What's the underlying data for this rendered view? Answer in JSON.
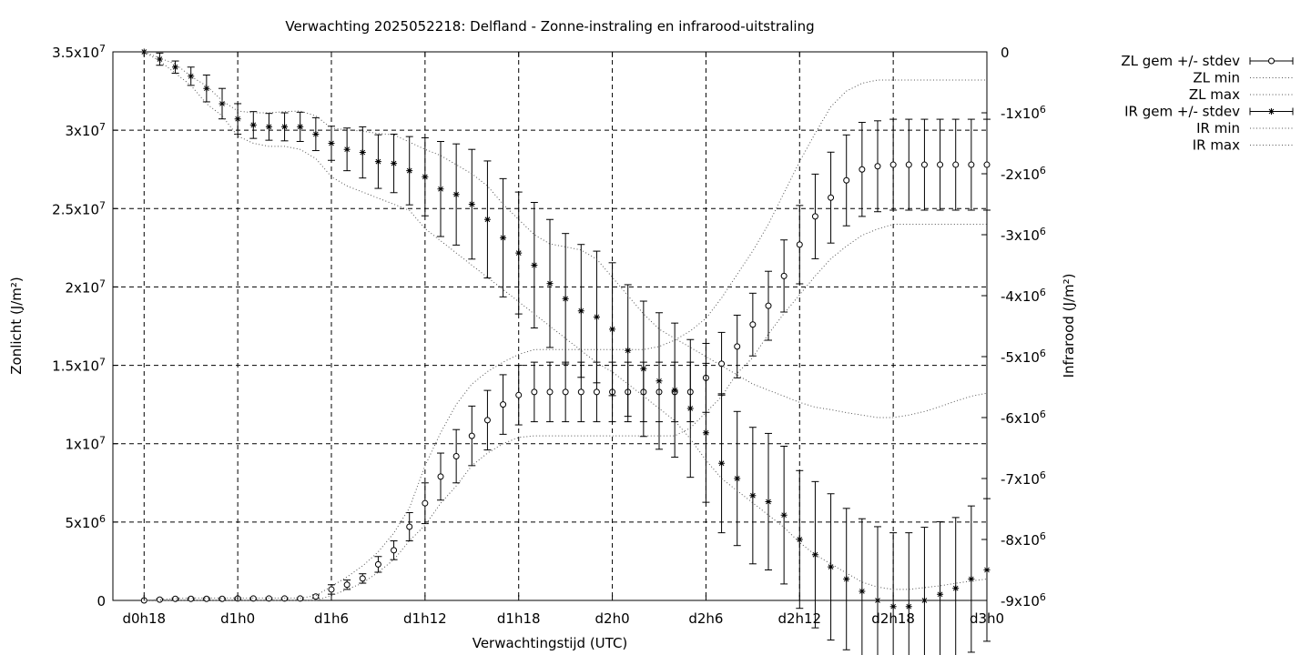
{
  "chart_data": {
    "type": "line",
    "title": "Verwachting 2025052218: Delfland - Zonne-instraling en infrarood-uitstraling",
    "xlabel": "Verwachtingstijd (UTC)",
    "ylabel": "Zonlicht (J/m²)",
    "y2label": "Infrarood (J/m²)",
    "x_hours": [
      18,
      19,
      20,
      21,
      22,
      23,
      24,
      25,
      26,
      27,
      28,
      29,
      30,
      31,
      32,
      33,
      34,
      35,
      36,
      37,
      38,
      39,
      40,
      41,
      42,
      43,
      44,
      45,
      46,
      47,
      48,
      49,
      50,
      51,
      52,
      53,
      54,
      55,
      56,
      57,
      58,
      59,
      60,
      61,
      62,
      63,
      64,
      65,
      66,
      67,
      68,
      69,
      70,
      71,
      72
    ],
    "xlim": [
      16,
      72
    ],
    "ylim": [
      0,
      35000000
    ],
    "y2lim": [
      -9000000,
      0
    ],
    "xticks": [
      {
        "h": 18,
        "label": "d0h18"
      },
      {
        "h": 24,
        "label": "d1h0"
      },
      {
        "h": 30,
        "label": "d1h6"
      },
      {
        "h": 36,
        "label": "d1h12"
      },
      {
        "h": 42,
        "label": "d1h18"
      },
      {
        "h": 48,
        "label": "d2h0"
      },
      {
        "h": 54,
        "label": "d2h6"
      },
      {
        "h": 60,
        "label": "d2h12"
      },
      {
        "h": 66,
        "label": "d2h18"
      },
      {
        "h": 72,
        "label": "d3h0"
      }
    ],
    "yticks": [
      {
        "v": 0,
        "m": "0",
        "e": ""
      },
      {
        "v": 5000000,
        "m": "5x10",
        "e": "6"
      },
      {
        "v": 10000000,
        "m": "1x10",
        "e": "7"
      },
      {
        "v": 15000000,
        "m": "1.5x10",
        "e": "7"
      },
      {
        "v": 20000000,
        "m": "2x10",
        "e": "7"
      },
      {
        "v": 25000000,
        "m": "2.5x10",
        "e": "7"
      },
      {
        "v": 30000000,
        "m": "3x10",
        "e": "7"
      },
      {
        "v": 35000000,
        "m": "3.5x10",
        "e": "7"
      }
    ],
    "y2ticks": [
      {
        "v": 0,
        "m": "0",
        "e": ""
      },
      {
        "v": -1000000,
        "m": "-1x10",
        "e": "6"
      },
      {
        "v": -2000000,
        "m": "-2x10",
        "e": "6"
      },
      {
        "v": -3000000,
        "m": "-3x10",
        "e": "6"
      },
      {
        "v": -4000000,
        "m": "-4x10",
        "e": "6"
      },
      {
        "v": -5000000,
        "m": "-5x10",
        "e": "6"
      },
      {
        "v": -6000000,
        "m": "-6x10",
        "e": "6"
      },
      {
        "v": -7000000,
        "m": "-7x10",
        "e": "6"
      },
      {
        "v": -8000000,
        "m": "-8x10",
        "e": "6"
      },
      {
        "v": -9000000,
        "m": "-9x10",
        "e": "6"
      }
    ],
    "grid": true,
    "legend_position": "outside top-right",
    "series": [
      {
        "name": "ZL gem +/- stdev",
        "axis": "y",
        "style": "errorbars-circle",
        "values": [
          0,
          50000,
          100000,
          100000,
          100000,
          100000,
          120000,
          120000,
          120000,
          120000,
          120000,
          250000,
          700000,
          1000000,
          1400000,
          2300000,
          3200000,
          4700000,
          6200000,
          7900000,
          9200000,
          10500000,
          11500000,
          12500000,
          13100000,
          13300000,
          13300000,
          13300000,
          13300000,
          13300000,
          13300000,
          13300000,
          13300000,
          13300000,
          13300000,
          13300000,
          14200000,
          15100000,
          16200000,
          17600000,
          18800000,
          20700000,
          22700000,
          24500000,
          25700000,
          26800000,
          27500000,
          27700000,
          27800000,
          27800000,
          27800000,
          27800000,
          27800000,
          27800000,
          27800000
        ],
        "stdev": [
          0,
          50000,
          50000,
          50000,
          50000,
          50000,
          50000,
          50000,
          50000,
          50000,
          50000,
          100000,
          300000,
          300000,
          300000,
          500000,
          600000,
          900000,
          1300000,
          1500000,
          1700000,
          1900000,
          1900000,
          1900000,
          1900000,
          1900000,
          1900000,
          1900000,
          1900000,
          1900000,
          1900000,
          1900000,
          1900000,
          1900000,
          1900000,
          1900000,
          2200000,
          2000000,
          2000000,
          2000000,
          2200000,
          2300000,
          2500000,
          2700000,
          2900000,
          2900000,
          3000000,
          2900000,
          2900000,
          2900000,
          2900000,
          2900000,
          2900000,
          2900000,
          2900000
        ]
      },
      {
        "name": "ZL min",
        "axis": "y",
        "style": "dotted",
        "values": [
          0,
          0,
          0,
          0,
          0,
          0,
          0,
          0,
          0,
          0,
          0,
          0,
          300000,
          700000,
          1100000,
          1800000,
          2600000,
          3800000,
          4800000,
          6200000,
          7300000,
          8600000,
          9400000,
          10000000,
          10400000,
          10500000,
          10500000,
          10500000,
          10500000,
          10500000,
          10500000,
          10500000,
          10500000,
          10500000,
          10500000,
          11000000,
          12000000,
          13000000,
          14500000,
          15500000,
          17000000,
          18300000,
          19500000,
          20700000,
          21800000,
          22600000,
          23300000,
          23700000,
          24000000,
          24000000,
          24000000,
          24000000,
          24000000,
          24000000,
          24000000
        ]
      },
      {
        "name": "ZL max",
        "axis": "y",
        "style": "dotted",
        "values": [
          0,
          50000,
          120000,
          150000,
          150000,
          150000,
          150000,
          150000,
          150000,
          150000,
          150000,
          300000,
          900000,
          1500000,
          2200000,
          3100000,
          4300000,
          5900000,
          8600000,
          10700000,
          12500000,
          13800000,
          14600000,
          15200000,
          15700000,
          16000000,
          16000000,
          16000000,
          16000000,
          16000000,
          16000000,
          16000000,
          16000000,
          16200000,
          16600000,
          17200000,
          18000000,
          19300000,
          20800000,
          22300000,
          24000000,
          26000000,
          28000000,
          29800000,
          31500000,
          32500000,
          33000000,
          33200000,
          33200000,
          33200000,
          33200000,
          33200000,
          33200000,
          33200000,
          33200000
        ]
      },
      {
        "name": "IR gem +/- stdev",
        "axis": "y2",
        "style": "errorbars-star",
        "values": [
          0,
          -120000,
          -250000,
          -400000,
          -600000,
          -850000,
          -1100000,
          -1200000,
          -1230000,
          -1230000,
          -1230000,
          -1350000,
          -1500000,
          -1600000,
          -1650000,
          -1800000,
          -1830000,
          -1950000,
          -2050000,
          -2250000,
          -2340000,
          -2500000,
          -2750000,
          -3050000,
          -3300000,
          -3500000,
          -3800000,
          -4050000,
          -4250000,
          -4350000,
          -4550000,
          -4900000,
          -5200000,
          -5400000,
          -5550000,
          -5850000,
          -6250000,
          -6750000,
          -7000000,
          -7280000,
          -7380000,
          -7600000,
          -8000000,
          -8250000,
          -8450000,
          -8650000,
          -8850000,
          -9000000,
          -9100000,
          -9100000,
          -9000000,
          -8900000,
          -8800000,
          -8650000,
          -8500000
        ],
        "stdev": [
          0,
          100000,
          100000,
          150000,
          220000,
          250000,
          250000,
          220000,
          220000,
          230000,
          240000,
          270000,
          280000,
          350000,
          420000,
          440000,
          480000,
          560000,
          640000,
          780000,
          830000,
          900000,
          960000,
          970000,
          1000000,
          1030000,
          1050000,
          1070000,
          1090000,
          1080000,
          1090000,
          1080000,
          1110000,
          1120000,
          1100000,
          1130000,
          1140000,
          1140000,
          1100000,
          1120000,
          1120000,
          1130000,
          1130000,
          1200000,
          1200000,
          1160000,
          1190000,
          1210000,
          1210000,
          1210000,
          1200000,
          1190000,
          1160000,
          1200000,
          1170000
        ]
      },
      {
        "name": "IR min",
        "axis": "y2",
        "style": "dotted",
        "values": [
          0,
          -150000,
          -350000,
          -550000,
          -850000,
          -1050000,
          -1380000,
          -1500000,
          -1550000,
          -1550000,
          -1600000,
          -1750000,
          -2050000,
          -2200000,
          -2300000,
          -2400000,
          -2500000,
          -2600000,
          -2900000,
          -3100000,
          -3300000,
          -3500000,
          -3700000,
          -3900000,
          -4100000,
          -4300000,
          -4500000,
          -4700000,
          -4900000,
          -5100000,
          -5250000,
          -5450000,
          -5650000,
          -5850000,
          -6050000,
          -6350000,
          -6700000,
          -7000000,
          -7200000,
          -7400000,
          -7600000,
          -7800000,
          -8050000,
          -8250000,
          -8400000,
          -8550000,
          -8700000,
          -8780000,
          -8820000,
          -8820000,
          -8790000,
          -8760000,
          -8720000,
          -8680000,
          -8650000
        ]
      },
      {
        "name": "IR max",
        "axis": "y2",
        "style": "dotted",
        "values": [
          0,
          -100000,
          -200000,
          -400000,
          -560000,
          -800000,
          -970000,
          -1000000,
          -1000000,
          -980000,
          -970000,
          -1050000,
          -1250000,
          -1280000,
          -1300000,
          -1340000,
          -1360000,
          -1480000,
          -1600000,
          -1700000,
          -1850000,
          -2000000,
          -2200000,
          -2500000,
          -2750000,
          -3000000,
          -3150000,
          -3200000,
          -3250000,
          -3400000,
          -3700000,
          -4000000,
          -4300000,
          -4550000,
          -4700000,
          -4850000,
          -5000000,
          -5150000,
          -5300000,
          -5450000,
          -5550000,
          -5650000,
          -5750000,
          -5830000,
          -5870000,
          -5920000,
          -5960000,
          -6000000,
          -6000000,
          -5960000,
          -5900000,
          -5820000,
          -5730000,
          -5650000,
          -5600000
        ]
      }
    ]
  }
}
